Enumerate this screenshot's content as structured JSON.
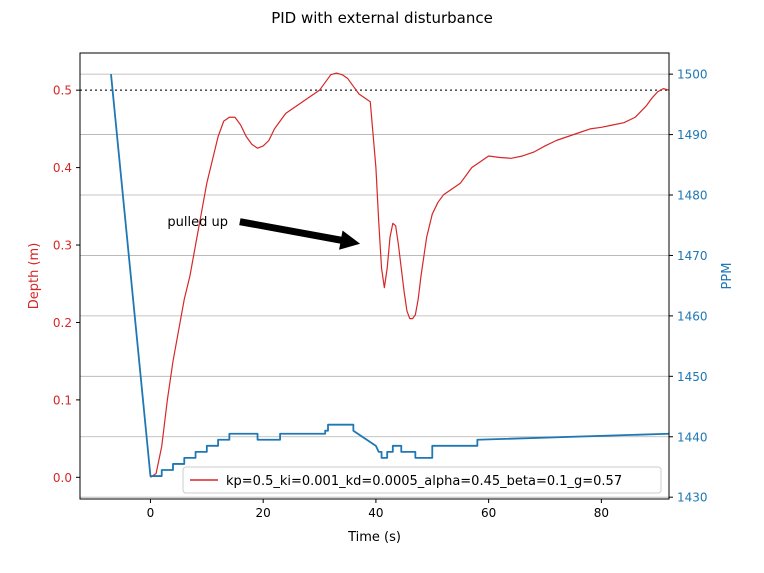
{
  "chart_data": {
    "type": "line",
    "title": "PID with external disturbance",
    "xlabel": "Time (s)",
    "ylabel_left": "Depth (m)",
    "ylabel_right": "PPM",
    "xlim": [
      -12.5,
      92
    ],
    "ylim_left": [
      -0.028,
      0.548
    ],
    "ylim_right": [
      1429.7,
      1503.5
    ],
    "x_ticks": [
      0,
      20,
      40,
      60,
      80
    ],
    "y_left_ticks": [
      0.0,
      0.1,
      0.2,
      0.3,
      0.4,
      0.5
    ],
    "y_right_ticks": [
      1430,
      1440,
      1450,
      1460,
      1470,
      1480,
      1490,
      1500
    ],
    "grid": "horizontal lines at right-axis ticks",
    "reference_line": {
      "y": 0.5,
      "axis": "left",
      "style": "dotted",
      "color": "#555555"
    },
    "legend": {
      "label": "kp=0.5_ki=0.001_kd=0.0005_alpha=0.45_beta=0.1_g=0.57",
      "placement": "lower right"
    },
    "annotation": {
      "text": "pulled up",
      "text_x": 3,
      "text_y": 0.33,
      "arrow_to_x": 37,
      "arrow_to_y": 0.302
    },
    "colors": {
      "depth": "#d62728",
      "ppm": "#1f77b4",
      "left_axis": "#d62728",
      "right_axis": "#1f77b4"
    },
    "series": [
      {
        "name": "kp=0.5_ki=0.001_kd=0.0005_alpha=0.45_beta=0.1_g=0.57",
        "axis": "left",
        "color": "#d62728",
        "x": [
          0,
          1,
          2,
          3,
          4,
          5,
          6,
          7,
          8,
          9,
          10,
          11,
          12,
          13,
          14,
          15,
          16,
          17,
          18,
          19,
          20,
          21,
          22,
          23,
          24,
          25,
          26,
          27,
          28,
          29,
          30,
          31,
          32,
          33,
          34,
          35,
          36,
          37,
          38,
          39,
          40,
          40.5,
          41,
          41.5,
          42,
          42.5,
          43,
          43.5,
          44,
          44.5,
          45,
          45.5,
          46,
          46.5,
          47,
          47.5,
          48,
          49,
          50,
          51,
          52,
          53,
          54,
          55,
          56,
          57,
          58,
          59,
          60,
          62,
          64,
          66,
          68,
          70,
          72,
          74,
          76,
          78,
          80,
          82,
          84,
          86,
          88,
          89,
          90,
          91,
          92
        ],
        "y": [
          0.0,
          0.005,
          0.04,
          0.1,
          0.15,
          0.19,
          0.23,
          0.26,
          0.3,
          0.34,
          0.38,
          0.41,
          0.44,
          0.46,
          0.465,
          0.465,
          0.455,
          0.44,
          0.43,
          0.425,
          0.428,
          0.435,
          0.45,
          0.46,
          0.47,
          0.475,
          0.48,
          0.485,
          0.49,
          0.495,
          0.5,
          0.51,
          0.52,
          0.522,
          0.52,
          0.515,
          0.505,
          0.495,
          0.49,
          0.485,
          0.4,
          0.33,
          0.27,
          0.245,
          0.27,
          0.31,
          0.328,
          0.325,
          0.3,
          0.27,
          0.24,
          0.215,
          0.205,
          0.205,
          0.21,
          0.23,
          0.26,
          0.31,
          0.34,
          0.355,
          0.365,
          0.37,
          0.375,
          0.38,
          0.39,
          0.4,
          0.405,
          0.41,
          0.415,
          0.413,
          0.412,
          0.415,
          0.42,
          0.428,
          0.435,
          0.44,
          0.445,
          0.45,
          0.452,
          0.455,
          0.458,
          0.465,
          0.48,
          0.49,
          0.498,
          0.502,
          0.5
        ]
      },
      {
        "name": "",
        "axis": "right",
        "color": "#1f77b4",
        "x": [
          -7,
          0,
          0,
          2,
          2,
          4,
          4,
          6,
          6,
          8,
          8,
          10,
          10,
          12,
          12,
          14,
          14,
          19,
          19,
          23,
          23,
          31,
          31,
          31.5,
          31.5,
          36,
          36,
          40,
          40.5,
          41,
          41,
          42,
          42,
          43,
          43,
          44.5,
          44.5,
          47,
          47,
          50,
          50,
          58,
          58,
          92
        ],
        "y": [
          1500,
          1433.5,
          1433.5,
          1433.5,
          1434.5,
          1434.5,
          1435.5,
          1435.5,
          1436.5,
          1436.5,
          1437.5,
          1437.5,
          1438.5,
          1438.5,
          1439.5,
          1439.5,
          1440.5,
          1440.5,
          1439.5,
          1439.5,
          1440.5,
          1440.5,
          1441,
          1441,
          1442,
          1442,
          1441,
          1438.5,
          1437.5,
          1437.5,
          1436.5,
          1436.5,
          1437.5,
          1437.5,
          1438.5,
          1438.5,
          1437.5,
          1437.5,
          1436.5,
          1436.5,
          1438.5,
          1438.5,
          1439.5,
          1440.5
        ]
      }
    ]
  }
}
